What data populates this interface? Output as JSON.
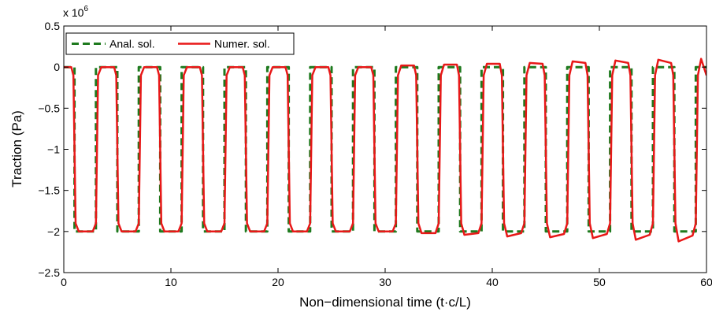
{
  "chart_data": {
    "type": "line",
    "xlabel": "Non−dimensional time (t·c/L)",
    "ylabel": "Traction (Pa)",
    "y_multiplier": "x 10",
    "y_exponent": "6",
    "xlim": [
      0,
      60
    ],
    "ylim": [
      -2.5,
      0.5
    ],
    "x_ticks": [
      0,
      10,
      20,
      30,
      40,
      50,
      60
    ],
    "x_tick_labels": [
      "0",
      "10",
      "20",
      "30",
      "40",
      "50",
      "60"
    ],
    "y_ticks": [
      0.5,
      0,
      -0.5,
      -1,
      -1.5,
      -2,
      -2.5
    ],
    "y_tick_labels": [
      "0.5",
      "0",
      "−0.5",
      "−1",
      "−1.5",
      "−2",
      "−2.5"
    ],
    "grid": false,
    "legend": "top-left",
    "series": [
      {
        "name": "Anal. sol.",
        "color": "#1e7a1e",
        "style": "dashed",
        "x": [
          0,
          1,
          1,
          3,
          3,
          5,
          5,
          7,
          7,
          9,
          9,
          11,
          11,
          13,
          13,
          15,
          15,
          17,
          17,
          19,
          19,
          21,
          21,
          23,
          23,
          25,
          25,
          27,
          27,
          29,
          29,
          31,
          31,
          33,
          33,
          35,
          35,
          37,
          37,
          39,
          39,
          41,
          41,
          43,
          43,
          45,
          45,
          47,
          47,
          49,
          49,
          51,
          51,
          53,
          53,
          55,
          55,
          57,
          57,
          59,
          59,
          60
        ],
        "y": [
          0,
          0,
          -2,
          -2,
          0,
          0,
          -2,
          -2,
          0,
          0,
          -2,
          -2,
          0,
          0,
          -2,
          -2,
          0,
          0,
          -2,
          -2,
          0,
          0,
          -2,
          -2,
          0,
          0,
          -2,
          -2,
          0,
          0,
          -2,
          -2,
          0,
          0,
          -2,
          -2,
          0,
          0,
          -2,
          -2,
          0,
          0,
          -2,
          -2,
          0,
          0,
          -2,
          -2,
          0,
          0,
          -2,
          -2,
          0,
          0,
          -2,
          -2,
          0,
          0,
          -2,
          -2,
          0,
          0
        ]
      },
      {
        "name": "Numer. sol.",
        "color": "#e81818",
        "style": "solid",
        "x": [
          0,
          0.7,
          0.9,
          1.1,
          1.4,
          2.7,
          3.0,
          3.2,
          3.5,
          4.7,
          4.9,
          5.1,
          5.4,
          6.7,
          7.0,
          7.2,
          7.5,
          8.7,
          8.9,
          9.1,
          9.4,
          10.7,
          11.0,
          11.2,
          11.5,
          12.7,
          12.9,
          13.1,
          13.4,
          14.7,
          15.0,
          15.2,
          15.5,
          16.7,
          16.9,
          17.1,
          17.4,
          18.7,
          19.0,
          19.2,
          19.5,
          20.7,
          20.9,
          21.1,
          21.4,
          22.7,
          23.0,
          23.2,
          23.5,
          24.7,
          24.9,
          25.1,
          25.4,
          26.7,
          27.0,
          27.2,
          27.5,
          28.7,
          28.9,
          29.1,
          29.4,
          30.7,
          31.0,
          31.2,
          31.5,
          32.7,
          32.9,
          33.1,
          33.4,
          34.7,
          35.0,
          35.2,
          35.5,
          36.7,
          36.9,
          37.1,
          37.4,
          38.7,
          39.0,
          39.2,
          39.5,
          40.7,
          40.9,
          41.1,
          41.4,
          42.7,
          43.0,
          43.2,
          43.5,
          44.7,
          44.9,
          45.1,
          45.4,
          46.7,
          47.0,
          47.2,
          47.5,
          48.7,
          48.9,
          49.1,
          49.4,
          50.7,
          51.0,
          51.2,
          51.5,
          52.7,
          52.9,
          53.1,
          53.4,
          54.7,
          55.0,
          55.2,
          55.5,
          56.7,
          56.9,
          57.1,
          57.4,
          58.7,
          59.0,
          59.2,
          59.5,
          60
        ],
        "y": [
          0,
          0,
          -0.1,
          -1.9,
          -2,
          -2,
          -1.9,
          -0.1,
          0,
          0,
          -0.1,
          -1.9,
          -2,
          -2,
          -1.9,
          -0.1,
          0,
          0,
          -0.1,
          -1.9,
          -2,
          -2,
          -1.9,
          -0.1,
          0,
          0,
          -0.1,
          -1.9,
          -2,
          -2,
          -1.9,
          -0.1,
          0,
          0,
          -0.1,
          -1.9,
          -2,
          -2,
          -1.9,
          -0.1,
          0,
          0,
          -0.1,
          -1.9,
          -2,
          -2,
          -1.9,
          -0.1,
          0,
          0,
          -0.1,
          -1.9,
          -2,
          -2,
          -1.9,
          -0.1,
          0,
          0,
          -0.1,
          -1.9,
          -2,
          -2,
          -1.9,
          -0.1,
          0.02,
          0.02,
          -0.1,
          -1.9,
          -2.02,
          -2.02,
          -1.9,
          -0.1,
          0.03,
          0.03,
          -0.1,
          -1.9,
          -2.04,
          -2.02,
          -1.9,
          -0.1,
          0.04,
          0.04,
          -0.1,
          -1.9,
          -2.06,
          -2.02,
          -1.9,
          -0.1,
          0.05,
          0.04,
          -0.1,
          -1.9,
          -2.07,
          -2.03,
          -1.9,
          -0.1,
          0.07,
          0.05,
          -0.1,
          -1.9,
          -2.08,
          -2.03,
          -1.9,
          -0.1,
          0.08,
          0.05,
          -0.1,
          -1.9,
          -2.1,
          -2.04,
          -1.9,
          -0.1,
          0.09,
          0.05,
          -0.1,
          -1.9,
          -2.12,
          -2.05,
          -1.9,
          -0.1,
          0.1,
          -0.1
        ]
      }
    ]
  }
}
